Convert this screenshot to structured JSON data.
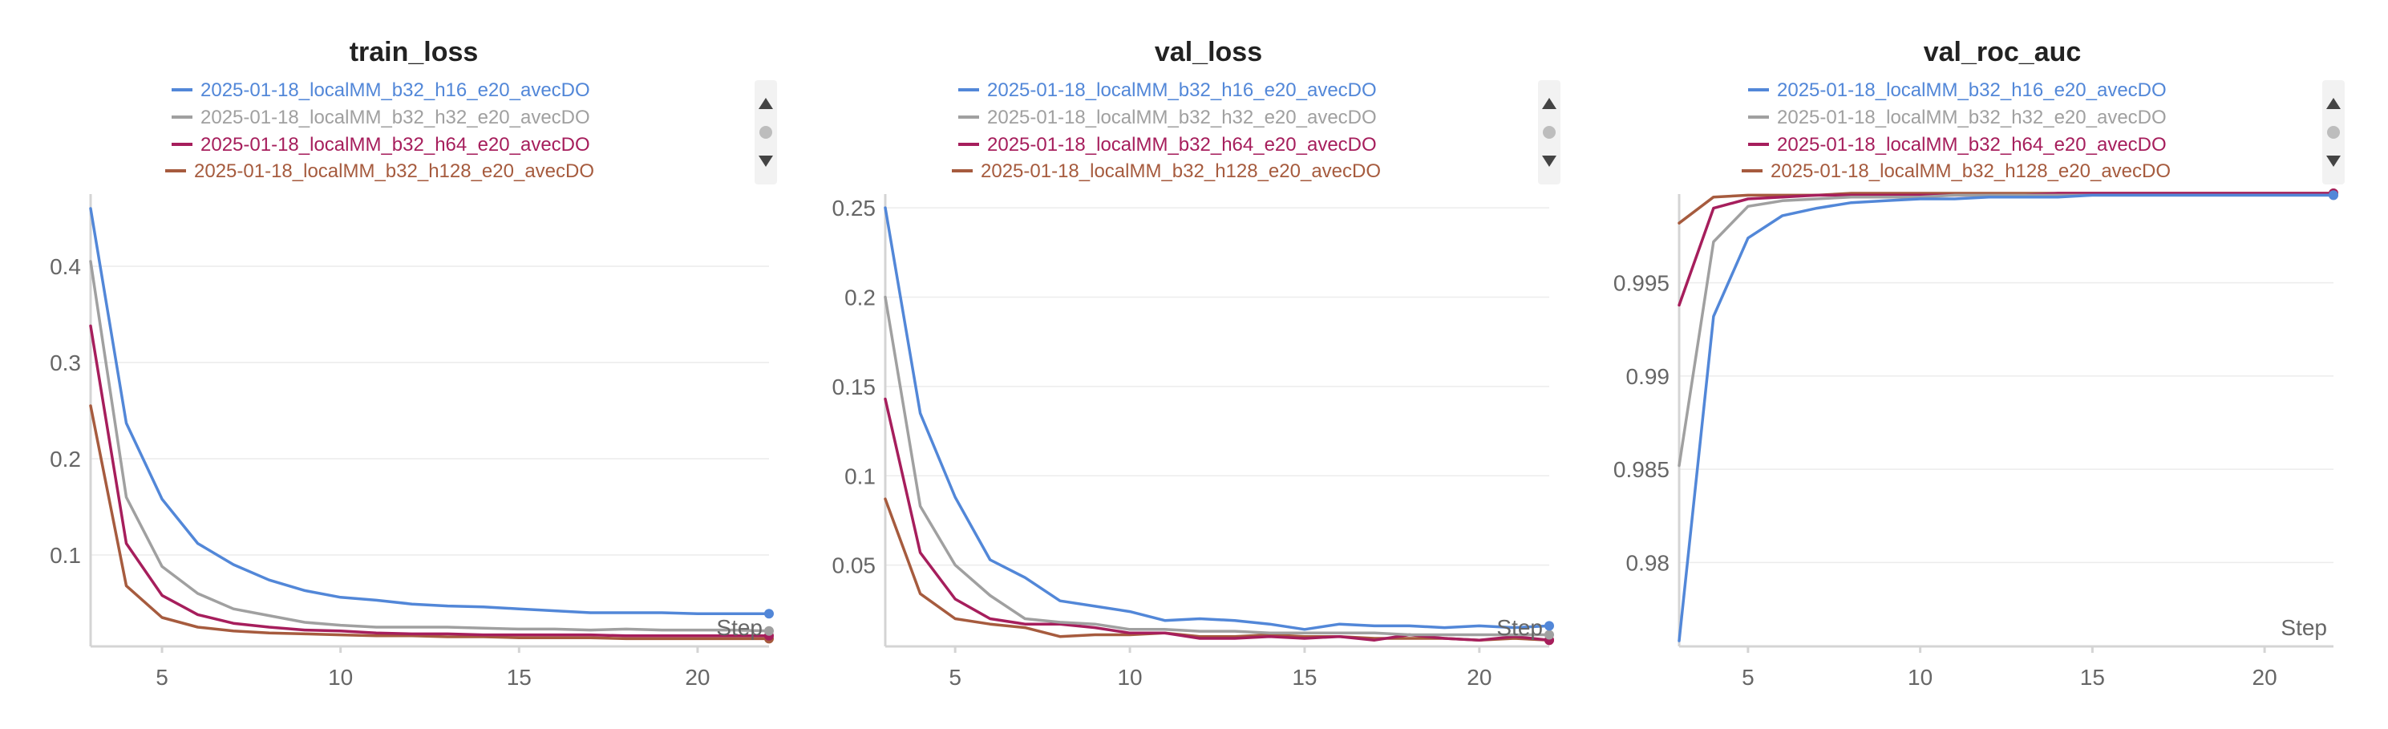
{
  "colors": {
    "h16": "#5287d8",
    "h32": "#a0a0a0",
    "h64": "#a61e5c",
    "h128": "#a65b3e"
  },
  "chart_data": [
    {
      "type": "line",
      "title": "train_loss",
      "xlabel": "Step",
      "ylabel": "",
      "xlim": [
        3,
        22
      ],
      "ylim": [
        0.005,
        0.47
      ],
      "xticks": [
        5,
        10,
        15,
        20
      ],
      "xtick_labels": [
        "5",
        "10",
        "15",
        "20"
      ],
      "yticks": [
        0.1,
        0.2,
        0.3,
        0.4
      ],
      "ytick_labels": [
        "0.1",
        "0.2",
        "0.3",
        "0.4"
      ],
      "grid": true,
      "legend": "top",
      "x": [
        3,
        4,
        5,
        6,
        7,
        8,
        9,
        10,
        11,
        12,
        13,
        14,
        15,
        16,
        17,
        18,
        19,
        20,
        21,
        22
      ],
      "series": [
        {
          "name": "2025-01-18_localMM_b32_h16_e20_avecDO",
          "color_key": "h16",
          "values": [
            0.46,
            0.237,
            0.158,
            0.112,
            0.09,
            0.074,
            0.063,
            0.056,
            0.053,
            0.049,
            0.047,
            0.046,
            0.044,
            0.042,
            0.04,
            0.04,
            0.04,
            0.039,
            0.039,
            0.039
          ]
        },
        {
          "name": "2025-01-18_localMM_b32_h32_e20_avecDO",
          "color_key": "h32",
          "values": [
            0.405,
            0.16,
            0.088,
            0.06,
            0.044,
            0.037,
            0.03,
            0.027,
            0.025,
            0.025,
            0.025,
            0.024,
            0.023,
            0.023,
            0.022,
            0.023,
            0.022,
            0.022,
            0.022,
            0.021
          ]
        },
        {
          "name": "2025-01-18_localMM_b32_h64_e20_avecDO",
          "color_key": "h64",
          "values": [
            0.338,
            0.112,
            0.058,
            0.038,
            0.029,
            0.025,
            0.022,
            0.021,
            0.019,
            0.018,
            0.018,
            0.017,
            0.017,
            0.017,
            0.017,
            0.016,
            0.016,
            0.016,
            0.016,
            0.016
          ]
        },
        {
          "name": "2025-01-18_localMM_b32_h128_e20_avecDO",
          "color_key": "h128",
          "values": [
            0.255,
            0.068,
            0.035,
            0.025,
            0.021,
            0.019,
            0.018,
            0.017,
            0.016,
            0.016,
            0.015,
            0.015,
            0.014,
            0.014,
            0.014,
            0.013,
            0.013,
            0.013,
            0.013,
            0.013
          ]
        }
      ]
    },
    {
      "type": "line",
      "title": "val_loss",
      "xlabel": "Step",
      "ylabel": "",
      "xlim": [
        3,
        22
      ],
      "ylim": [
        0.0045,
        0.255
      ],
      "xticks": [
        5,
        10,
        15,
        20
      ],
      "xtick_labels": [
        "5",
        "10",
        "15",
        "20"
      ],
      "yticks": [
        0.05,
        0.1,
        0.15,
        0.2,
        0.25
      ],
      "ytick_labels": [
        "0.05",
        "0.1",
        "0.15",
        "0.2",
        "0.25"
      ],
      "grid": true,
      "legend": "top",
      "x": [
        3,
        4,
        5,
        6,
        7,
        8,
        9,
        10,
        11,
        12,
        13,
        14,
        15,
        16,
        17,
        18,
        19,
        20,
        21,
        22
      ],
      "series": [
        {
          "name": "2025-01-18_localMM_b32_h16_e20_avecDO",
          "color_key": "h16",
          "values": [
            0.25,
            0.135,
            0.088,
            0.053,
            0.043,
            0.03,
            0.027,
            0.024,
            0.019,
            0.02,
            0.019,
            0.017,
            0.014,
            0.017,
            0.016,
            0.016,
            0.015,
            0.016,
            0.015,
            0.016
          ]
        },
        {
          "name": "2025-01-18_localMM_b32_h32_e20_avecDO",
          "color_key": "h32",
          "values": [
            0.2,
            0.083,
            0.05,
            0.033,
            0.02,
            0.018,
            0.017,
            0.014,
            0.014,
            0.013,
            0.013,
            0.012,
            0.012,
            0.012,
            0.012,
            0.011,
            0.011,
            0.011,
            0.011,
            0.011
          ]
        },
        {
          "name": "2025-01-18_localMM_b32_h64_e20_avecDO",
          "color_key": "h64",
          "values": [
            0.143,
            0.057,
            0.031,
            0.02,
            0.017,
            0.017,
            0.015,
            0.012,
            0.012,
            0.009,
            0.009,
            0.01,
            0.009,
            0.01,
            0.008,
            0.011,
            0.009,
            0.008,
            0.01,
            0.008
          ]
        },
        {
          "name": "2025-01-18_localMM_b32_h128_e20_avecDO",
          "color_key": "h128",
          "values": [
            0.087,
            0.034,
            0.02,
            0.017,
            0.015,
            0.01,
            0.011,
            0.011,
            0.012,
            0.01,
            0.01,
            0.011,
            0.01,
            0.01,
            0.009,
            0.009,
            0.009,
            0.008,
            0.009,
            0.008
          ]
        }
      ]
    },
    {
      "type": "line",
      "title": "val_roc_auc",
      "xlabel": "Step",
      "ylabel": "",
      "xlim": [
        3,
        22
      ],
      "ylim": [
        0.9755,
        0.9995
      ],
      "xticks": [
        5,
        10,
        15,
        20
      ],
      "xtick_labels": [
        "5",
        "10",
        "15",
        "20"
      ],
      "yticks": [
        0.98,
        0.985,
        0.99,
        0.995
      ],
      "ytick_labels": [
        "0.98",
        "0.985",
        "0.99",
        "0.995"
      ],
      "grid": true,
      "legend": "top",
      "x": [
        3,
        4,
        5,
        6,
        7,
        8,
        9,
        10,
        11,
        12,
        13,
        14,
        15,
        16,
        17,
        18,
        19,
        20,
        21,
        22
      ],
      "series": [
        {
          "name": "2025-01-18_localMM_b32_h16_e20_avecDO",
          "color_key": "h16",
          "values": [
            0.9758,
            0.9932,
            0.9974,
            0.9986,
            0.999,
            0.9993,
            0.9994,
            0.9995,
            0.9995,
            0.9996,
            0.9996,
            0.9996,
            0.9997,
            0.9997,
            0.9997,
            0.9997,
            0.9997,
            0.9997,
            0.9997,
            0.9997
          ]
        },
        {
          "name": "2025-01-18_localMM_b32_h32_e20_avecDO",
          "color_key": "h32",
          "values": [
            0.9852,
            0.9972,
            0.9991,
            0.9994,
            0.9995,
            0.9996,
            0.9996,
            0.9996,
            0.9997,
            0.9997,
            0.9997,
            0.9997,
            0.9997,
            0.9997,
            0.9997,
            0.9997,
            0.9997,
            0.9997,
            0.9997,
            0.9997
          ]
        },
        {
          "name": "2025-01-18_localMM_b32_h64_e20_avecDO",
          "color_key": "h64",
          "values": [
            0.9938,
            0.999,
            0.9995,
            0.9996,
            0.9997,
            0.9997,
            0.9997,
            0.9997,
            0.9997,
            0.9997,
            0.9997,
            0.9998,
            0.9998,
            0.9998,
            0.9998,
            0.9998,
            0.9998,
            0.9998,
            0.9998,
            0.9998
          ]
        },
        {
          "name": "2025-01-18_localMM_b32_h128_e20_avecDO",
          "color_key": "h128",
          "values": [
            0.9982,
            0.9996,
            0.9997,
            0.9997,
            0.9997,
            0.9998,
            0.9998,
            0.9998,
            0.9998,
            0.9998,
            0.9998,
            0.9998,
            0.9998,
            0.9998,
            0.9998,
            0.9998,
            0.9998,
            0.9998,
            0.9998,
            0.9998
          ]
        }
      ]
    }
  ]
}
